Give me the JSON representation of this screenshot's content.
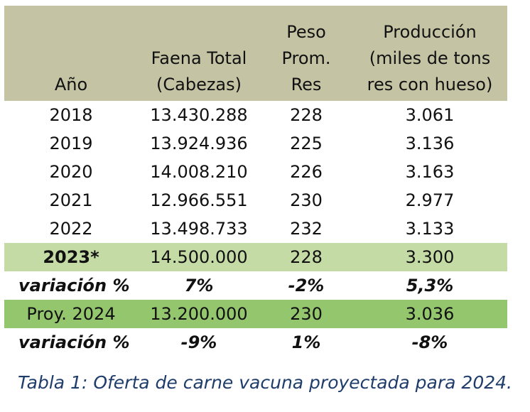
{
  "table": {
    "headers": [
      "Año",
      "Faena Total\n(Cabezas)",
      "Peso\nProm.\nRes",
      "Producción\n(miles de tons\nres con hueso)"
    ],
    "rows": [
      [
        "2018",
        "13.430.288",
        "228",
        "3.061"
      ],
      [
        "2019",
        "13.924.936",
        "225",
        "3.136"
      ],
      [
        "2020",
        "14.008.210",
        "226",
        "3.163"
      ],
      [
        "2021",
        "12.966.551",
        "230",
        "2.977"
      ],
      [
        "2022",
        "13.498.733",
        "232",
        "3.133"
      ],
      [
        "2023*",
        "14.500.000",
        "228",
        "3.300"
      ],
      [
        "variación %",
        "7%",
        "-2%",
        "5,3%"
      ],
      [
        "Proy. 2024",
        "13.200.000",
        "230",
        "3.036"
      ],
      [
        "variación %",
        "-9%",
        "1%",
        "-8%"
      ]
    ]
  },
  "colors": {
    "header_bg": "#c4c4a5",
    "row_2023_bg": "#c5dba6",
    "row_proy_bg": "#94c66e",
    "caption_color": "#1f3d6b"
  },
  "caption": "Tabla 1: Oferta de carne vacuna proyectada para 2024."
}
